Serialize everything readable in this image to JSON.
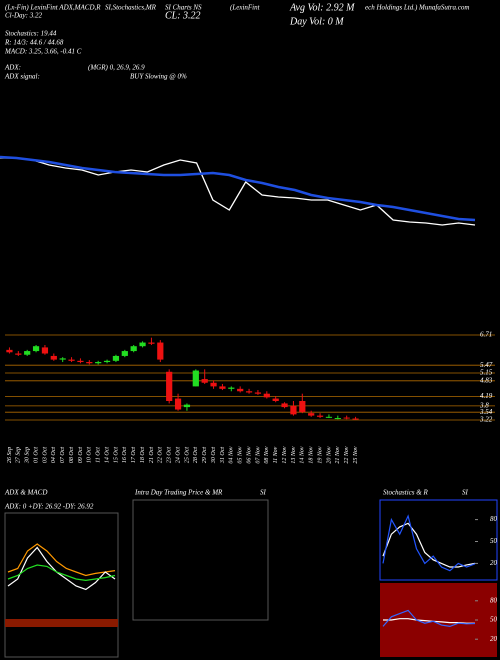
{
  "chart_data": [
    {
      "type": "line",
      "annotations": [
        "(Lx-Fin) LexinFint ADX,MACD,R",
        "Cl-Day: 3.22",
        "SI,Stochastics,MR",
        "SI Charts NS",
        "CL: 3.22",
        "(LexinFint",
        "Avg Vol: 2.92  M",
        "Day Vol: 0   M",
        "ech Holdings Ltd.) MunafaSutra.com",
        "Stochastics: 19.44",
        "R: 14/3: 44.6 / 44.68",
        "MACD: 3.25, 3.66, -0.41 C",
        "ADX:",
        "(MGR) 0, 26.9, 26.9",
        "ADX  signal:",
        "BUY Slowing @ 0%"
      ],
      "ylim": [
        3,
        7
      ],
      "series": [
        {
          "color": "#ffffff",
          "values": [
            5.84,
            5.84,
            5.8,
            5.7,
            5.64,
            5.6,
            5.5,
            5.56,
            5.6,
            5.56,
            5.7,
            5.8,
            5.74,
            5.0,
            4.8,
            5.36,
            5.1,
            5.06,
            5.04,
            5.0,
            5.0,
            4.9,
            4.8,
            4.9,
            4.6,
            4.56,
            4.54,
            4.5,
            4.54,
            4.5
          ]
        },
        {
          "color": "#1f4fe0",
          "values": [
            5.86,
            5.84,
            5.8,
            5.76,
            5.7,
            5.64,
            5.6,
            5.56,
            5.54,
            5.52,
            5.5,
            5.5,
            5.52,
            5.54,
            5.5,
            5.4,
            5.34,
            5.26,
            5.2,
            5.1,
            5.04,
            5.0,
            4.96,
            4.9,
            4.86,
            4.8,
            4.74,
            4.68,
            4.62,
            4.6
          ]
        }
      ]
    },
    {
      "type": "candlestick",
      "categories": [
        "26 Sep",
        "27 Sep",
        "30 Sep",
        "01 Oct",
        "03 Oct",
        "04 Oct",
        "07 Oct",
        "08 Oct",
        "09 Oct",
        "10 Oct",
        "11 Oct",
        "14 Oct",
        "15 Oct",
        "16 Oct",
        "17 Oct",
        "18 Oct",
        "21 Oct",
        "22 Oct",
        "23 Oct",
        "24 Oct",
        "25 Oct",
        "28 Oct",
        "29 Oct",
        "30 Oct",
        "31 Oct",
        "04 Nov",
        "05 Nov",
        "06 Nov",
        "07 Nov",
        "08 Nov",
        "11 Nov",
        "12 Nov",
        "13 Nov",
        "14 Nov",
        "18 Nov",
        "19 Nov",
        "20 Nov",
        "21 Nov",
        "22 Nov",
        "25 Nov"
      ],
      "open": [
        6.1,
        5.95,
        5.9,
        6.05,
        6.2,
        5.85,
        5.7,
        5.7,
        5.65,
        5.6,
        5.55,
        5.6,
        5.65,
        5.85,
        6.05,
        6.25,
        6.4,
        6.4,
        5.2,
        4.1,
        3.75,
        4.6,
        4.9,
        4.75,
        4.6,
        4.5,
        4.5,
        4.4,
        4.35,
        4.3,
        4.1,
        3.9,
        3.8,
        4.0,
        3.5,
        3.4,
        3.35,
        3.3,
        3.32,
        3.28
      ],
      "high": [
        6.2,
        6.05,
        6.1,
        6.3,
        6.3,
        5.95,
        5.8,
        5.8,
        5.75,
        5.68,
        5.65,
        5.7,
        5.9,
        6.1,
        6.3,
        6.45,
        6.6,
        6.5,
        5.3,
        4.3,
        3.9,
        5.3,
        5.3,
        4.85,
        4.7,
        4.6,
        4.6,
        4.5,
        4.45,
        4.4,
        4.2,
        3.95,
        4.0,
        4.3,
        3.6,
        3.5,
        3.45,
        3.4,
        3.4,
        3.35
      ],
      "low": [
        5.95,
        5.85,
        5.85,
        6.0,
        5.9,
        5.65,
        5.6,
        5.6,
        5.55,
        5.5,
        5.5,
        5.55,
        5.6,
        5.8,
        6.0,
        6.2,
        6.3,
        5.6,
        3.9,
        3.6,
        3.6,
        4.6,
        4.7,
        4.5,
        4.45,
        4.4,
        4.35,
        4.3,
        4.25,
        4.1,
        3.95,
        3.7,
        3.4,
        3.5,
        3.35,
        3.3,
        3.3,
        3.25,
        3.25,
        3.22
      ],
      "close": [
        6.0,
        5.9,
        6.05,
        6.25,
        5.95,
        5.7,
        5.75,
        5.65,
        5.6,
        5.55,
        5.6,
        5.65,
        5.85,
        6.05,
        6.25,
        6.4,
        6.35,
        5.7,
        4.0,
        3.65,
        3.85,
        5.25,
        4.75,
        4.6,
        4.5,
        4.55,
        4.4,
        4.35,
        4.3,
        4.15,
        4.0,
        3.75,
        3.45,
        3.55,
        3.4,
        3.35,
        3.35,
        3.3,
        3.28,
        3.25
      ],
      "up_color": "#22dd22",
      "down_color": "#ee1111",
      "ylim": [
        3.22,
        6.71
      ],
      "yticks": [
        6.71,
        5.47,
        5.15,
        4.83,
        4.19,
        3.8,
        3.54,
        3.22
      ],
      "grid": true
    },
    {
      "type": "line",
      "title": "ADX  & MACD",
      "annotations": [
        "ADX: 0  +DY: 26.92  -DY: 26.92"
      ],
      "ylim": [
        0,
        100
      ],
      "series": [
        {
          "color": "#ff9900",
          "values": [
            40,
            45,
            70,
            80,
            70,
            55,
            45,
            40,
            35,
            38,
            40,
            42
          ]
        },
        {
          "color": "#ffffff",
          "values": [
            20,
            30,
            60,
            75,
            55,
            40,
            30,
            20,
            15,
            25,
            40,
            30
          ]
        },
        {
          "color": "#22dd22",
          "values": [
            30,
            35,
            45,
            50,
            48,
            40,
            35,
            30,
            28,
            30,
            32,
            35
          ]
        }
      ]
    },
    {
      "type": "line",
      "title": "Intra Day Trading Price  & MR",
      "subtitle": "SI",
      "ylim": [
        0,
        100
      ],
      "series": []
    },
    {
      "type": "line",
      "title": "Stochastics  & R",
      "subtitle": "SI",
      "ylim": [
        0,
        100
      ],
      "yticks": [
        80,
        50,
        20
      ],
      "series": [
        {
          "color": "#ffffff",
          "values": [
            30,
            60,
            70,
            75,
            60,
            35,
            25,
            20,
            15,
            15,
            18,
            20
          ]
        },
        {
          "color": "#2255ff",
          "values": [
            20,
            80,
            60,
            85,
            40,
            20,
            30,
            15,
            10,
            20,
            15,
            19.44
          ]
        }
      ]
    },
    {
      "type": "line",
      "ylim": [
        0,
        100
      ],
      "yticks": [
        80,
        50,
        20
      ],
      "series": [
        {
          "color": "#ffffff",
          "values": [
            50,
            50,
            52,
            52,
            50,
            49,
            48,
            47,
            46,
            46,
            45,
            45
          ]
        },
        {
          "color": "#3366ff",
          "values": [
            40,
            55,
            60,
            65,
            50,
            45,
            48,
            42,
            40,
            45,
            44,
            44.6
          ]
        }
      ]
    }
  ]
}
